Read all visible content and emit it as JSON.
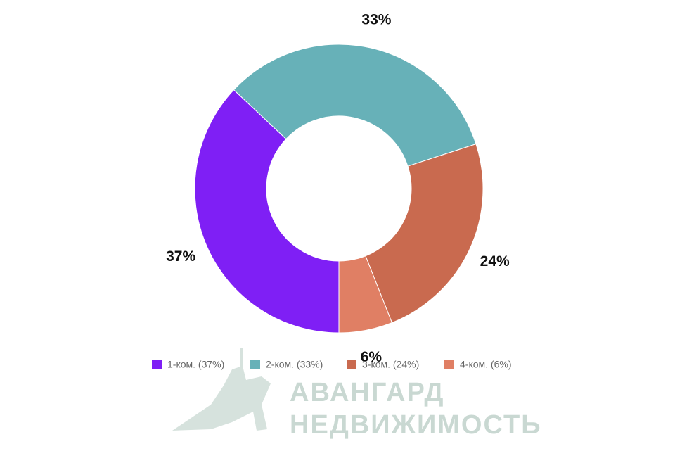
{
  "chart_data": {
    "type": "donut",
    "categories": [
      "1-ком. (37%)",
      "2-ком. (33%)",
      "3-ком. (24%)",
      "4-ком. (6%)"
    ],
    "values": [
      37,
      33,
      24,
      6
    ],
    "value_labels": [
      "37%",
      "33%",
      "24%",
      "6%"
    ],
    "colors": [
      "#7f1ff5",
      "#67b1b8",
      "#c96a4f",
      "#e07f64"
    ],
    "legend": "bottom"
  },
  "watermark": {
    "lines": [
      "АВАНГАРД",
      "НЕДВИЖИМОСТЬ"
    ]
  }
}
